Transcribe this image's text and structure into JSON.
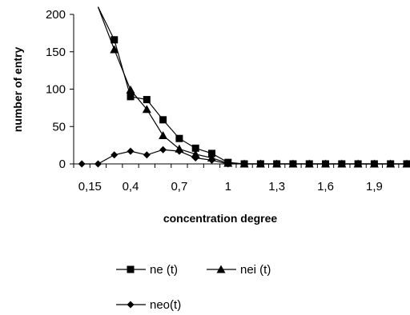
{
  "chart_data": {
    "type": "line",
    "xlabel": "concentration degree",
    "ylabel": "number of entry",
    "ylim": [
      0,
      200
    ],
    "yticks": [
      "0",
      "50",
      "100",
      "150",
      "200"
    ],
    "xticks": [
      "0,15",
      "0,4",
      "0,7",
      "1",
      "1,3",
      "1,6",
      "1,9"
    ],
    "xtick_values": [
      0.15,
      0.4,
      0.7,
      1.0,
      1.3,
      1.6,
      1.9
    ],
    "x": [
      0.1,
      0.2,
      0.3,
      0.4,
      0.5,
      0.6,
      0.7,
      0.8,
      0.9,
      1.0,
      1.1,
      1.2,
      1.3,
      1.4,
      1.5,
      1.6,
      1.7,
      1.8,
      1.9,
      2.0,
      2.1
    ],
    "xlim": [
      0.05,
      2.1
    ],
    "grid": false,
    "legend_placement": "bottom",
    "series": [
      {
        "name": "ne (t)",
        "marker": "square",
        "values": [
          null,
          null,
          166,
          90,
          86,
          59,
          34,
          21,
          14,
          2,
          0,
          0,
          0,
          0,
          0,
          0,
          0,
          0,
          0,
          0,
          0
        ],
        "left_segment": {
          "x": 0.2,
          "y": 210
        }
      },
      {
        "name": "nei (t)",
        "marker": "triangle",
        "values": [
          null,
          null,
          153,
          99,
          73,
          38,
          20,
          13,
          8,
          1,
          0,
          0,
          0,
          0,
          0,
          0,
          0,
          0,
          0,
          0,
          0
        ],
        "left_segment": {
          "x": 0.2,
          "y": 210
        }
      },
      {
        "name": "neo(t)",
        "marker": "diamond",
        "values": [
          0,
          0,
          12,
          17,
          12,
          19,
          17,
          8,
          5,
          0,
          0,
          0,
          0,
          0,
          0,
          0,
          0,
          0,
          0,
          0,
          0
        ]
      }
    ],
    "colors": {
      "line": "#000000",
      "axis": "#000000"
    }
  }
}
